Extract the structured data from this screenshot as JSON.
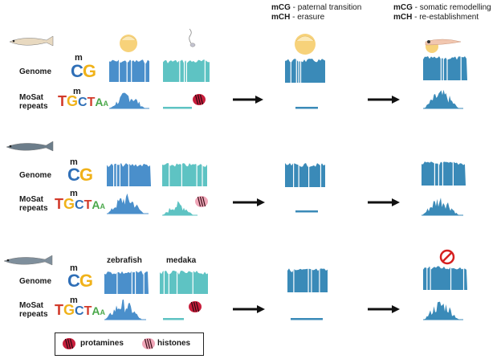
{
  "headers": {
    "paternal": {
      "mcg": "mCG",
      "mcg_text": " - paternal transition",
      "mch": "mCH",
      "mch_text": " - erasure"
    },
    "somatic": {
      "mcg": "mCG",
      "mcg_text": " - somatic remodelling",
      "mch": "mCH",
      "mch_text": " - re-establishment"
    }
  },
  "row_labels": {
    "genome": "Genome",
    "mosat_line1": "MoSat",
    "mosat_line2": "repeats"
  },
  "motifs": {
    "m": "m",
    "cg_c": "C",
    "cg_g": "G",
    "seq": [
      "T",
      "G",
      "C",
      "T",
      "A",
      "A"
    ]
  },
  "species_labels": {
    "left": "zebrafish",
    "right": "medaka"
  },
  "legend": {
    "protamines": "protamines",
    "histones": "histones"
  },
  "colors": {
    "blue": "#4a8fcb",
    "teal": "#5ec3c3",
    "dark_blue": "#3a8ab8",
    "egg": "#f7d27a",
    "protamine": "#c81e3c",
    "histone": "#f0a6b8",
    "arrow": "#111111"
  }
}
